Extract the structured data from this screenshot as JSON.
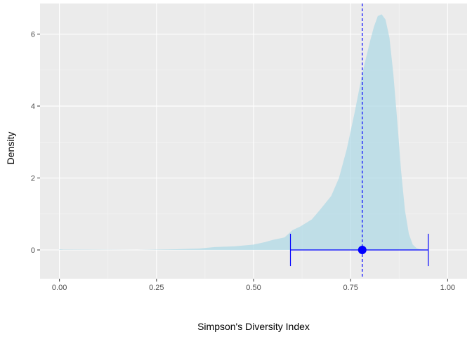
{
  "chart_data": {
    "type": "area",
    "title": "",
    "xlabel": "Simpson's Diversity Index",
    "ylabel": "Density",
    "xlim": [
      -0.05,
      1.05
    ],
    "ylim": [
      -0.8,
      6.85
    ],
    "x_ticks": [
      0.0,
      0.25,
      0.5,
      0.75,
      1.0
    ],
    "x_tick_labels": [
      "0.00",
      "0.25",
      "0.50",
      "0.75",
      "1.00"
    ],
    "y_ticks": [
      0,
      2,
      4,
      6
    ],
    "y_tick_labels": [
      "0",
      "2",
      "4",
      "6"
    ],
    "grid": true,
    "density": {
      "fill": "#add8e6",
      "opacity": 0.7,
      "x": [
        0.0,
        0.01,
        0.2,
        0.3,
        0.36,
        0.4,
        0.45,
        0.5,
        0.53,
        0.55,
        0.58,
        0.6,
        0.62,
        0.65,
        0.67,
        0.7,
        0.72,
        0.74,
        0.76,
        0.78,
        0.8,
        0.81,
        0.82,
        0.83,
        0.84,
        0.85,
        0.86,
        0.87,
        0.88,
        0.89,
        0.9,
        0.91,
        0.92,
        0.93,
        0.94,
        0.95
      ],
      "y": [
        0.02,
        0.01,
        0.0,
        0.02,
        0.04,
        0.08,
        0.1,
        0.15,
        0.22,
        0.28,
        0.35,
        0.55,
        0.65,
        0.85,
        1.1,
        1.5,
        2.0,
        2.8,
        3.8,
        4.9,
        5.8,
        6.2,
        6.5,
        6.55,
        6.4,
        5.9,
        4.9,
        3.6,
        2.2,
        1.1,
        0.45,
        0.15,
        0.05,
        0.02,
        0.01,
        0.0
      ]
    },
    "point_estimate": {
      "x": 0.78,
      "y": 0,
      "color": "#0000ff"
    },
    "interval": {
      "low": 0.595,
      "high": 0.95,
      "color": "#0000ff"
    },
    "vline": {
      "x": 0.78,
      "color": "#0000ff",
      "style": "dashed"
    }
  }
}
